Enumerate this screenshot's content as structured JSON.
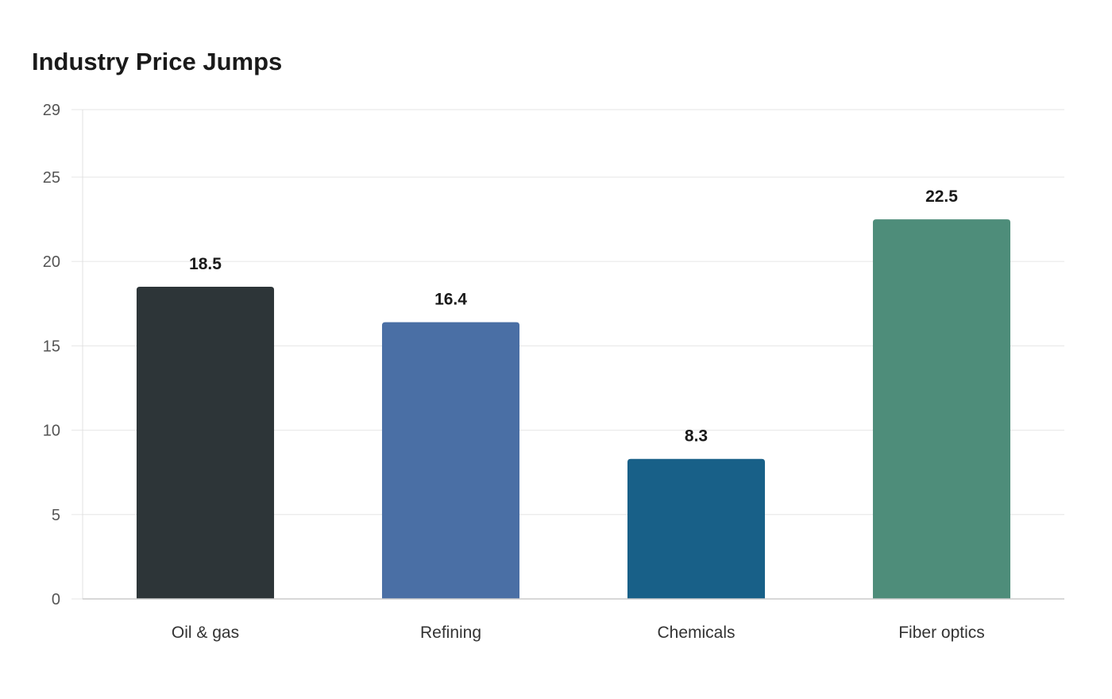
{
  "chart_data": {
    "type": "bar",
    "title": "Industry Price Jumps",
    "xlabel": "",
    "ylabel": "",
    "categories": [
      "Oil & gas",
      "Refining",
      "Chemicals",
      "Fiber optics"
    ],
    "values": [
      18.5,
      16.4,
      8.3,
      22.5
    ],
    "value_labels": [
      "18.5",
      "16.4",
      "8.3",
      "22.5"
    ],
    "colors": [
      "#2d3538",
      "#4a6fa5",
      "#186088",
      "#4e8d7a"
    ],
    "ylim": [
      0,
      29
    ],
    "yticks": [
      0,
      5,
      10,
      15,
      20,
      25,
      29
    ],
    "grid": true,
    "legend": "none"
  }
}
